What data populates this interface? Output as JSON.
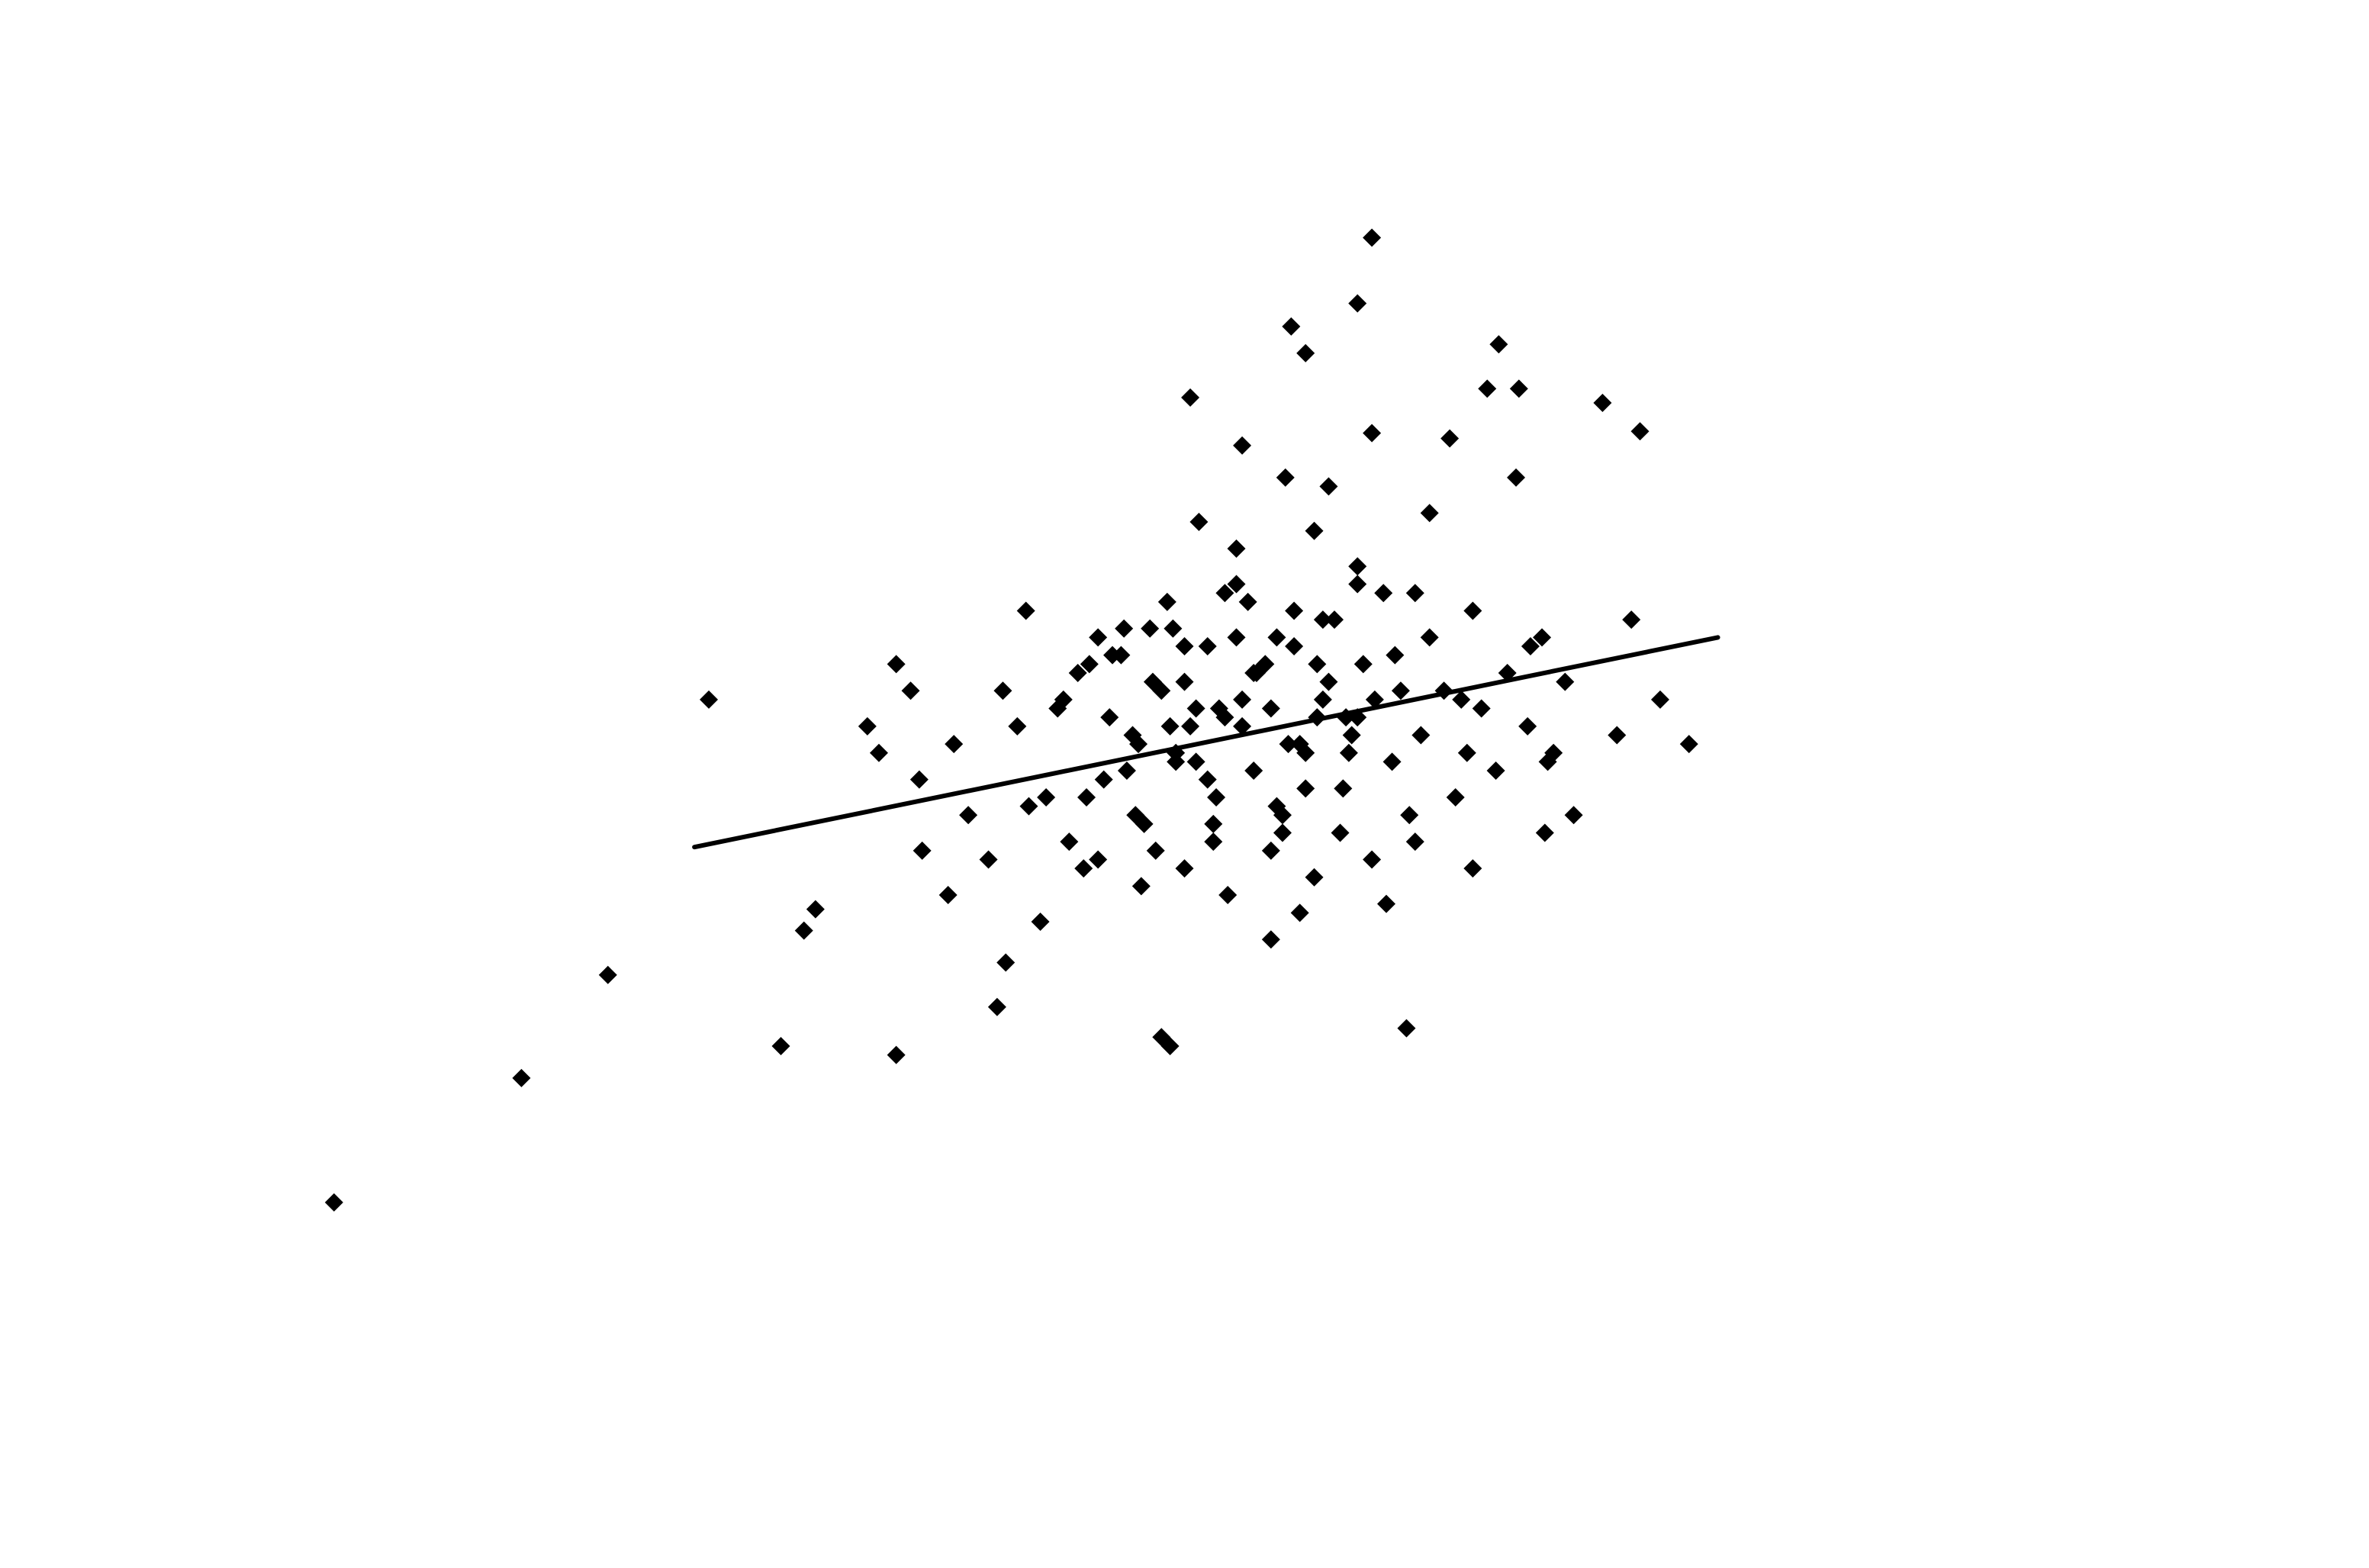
{
  "chart_data": {
    "type": "scatter",
    "title": "",
    "xlabel": "",
    "ylabel": "",
    "xlim": [
      -3.8,
      3.2
    ],
    "ylim": [
      -3.55,
      3.3
    ],
    "grid": false,
    "legend": "none",
    "marker": "diamond",
    "color": "#000000",
    "trendline": {
      "x": [
        -2.0,
        1.55
      ],
      "y": [
        -0.48,
        0.7
      ]
    },
    "points": {
      "x": [
        -3.25,
        -2.6,
        -1.7,
        -1.3,
        -1.58,
        -2.3,
        -1.95,
        -1.62,
        -1.21,
        -1.36,
        -0.92,
        -0.38,
        -0.95,
        -0.35,
        -1.3,
        0.35,
        0.3,
        0.47,
        0.66,
        0.75,
        -0.28,
        0.07,
        0.12,
        0.79,
        0.86,
        1.15,
        1.28,
        1.25,
        0.96,
        1.35,
        -0.1,
        0.2,
        0.05,
        0.35,
        0.62,
        0.85,
        0.15,
        -0.25,
        0.55,
        -0.12,
        -0.22,
        0.3,
        -0.16,
        -0.35,
        -0.6,
        -0.5,
        -0.78,
        -0.65,
        -1.05,
        -1.12,
        -0.98,
        -0.8,
        0.0,
        0.1,
        0.4,
        0.7,
        0.95,
        1.05,
        1.2,
        1.45,
        0.9,
        0.5,
        0.3,
        0.18,
        0.02,
        -0.08,
        -0.42,
        -0.55,
        -0.67,
        -0.74,
        -0.88,
        -0.93,
        -1.1,
        -1.22,
        -1.25,
        -1.4,
        -0.46,
        -0.3,
        -0.18,
        -0.02,
        0.16,
        0.27,
        0.36,
        0.43,
        0.52,
        0.6,
        0.68,
        0.73,
        0.82,
        0.89,
        0.94,
        1.02,
        0.12,
        -0.06,
        -0.19,
        -0.33,
        -0.47,
        -0.58,
        -0.7,
        -0.84,
        -0.4,
        -0.2,
        0.04,
        0.25,
        0.48,
        0.64,
        0.78,
        0.98,
        -0.63,
        -0.85,
        -0.51,
        -0.36,
        -0.12,
        0.08,
        0.22,
        0.39,
        0.55,
        0.7,
        -0.28,
        -0.1,
        0.1,
        0.3,
        0.45,
        -0.6,
        -0.45,
        -0.3,
        -0.15,
        0.0,
        0.15,
        0.35,
        0.5,
        -0.72,
        -0.56,
        -0.41,
        -0.26,
        -0.05,
        0.18,
        0.32,
        -0.48,
        -0.33,
        -0.1,
        0.06,
        0.26,
        0.42,
        -0.64,
        -0.22,
        0.02,
        0.2,
        -0.38,
        -0.16,
        0.12,
        0.28,
        -0.52,
        -0.3,
        -0.06,
        0.16,
        -0.44,
        -0.2,
        0.04,
        0.24,
        -0.34,
        -0.12,
        0.08,
        -0.26,
        0.0
      ],
      "y": [
        -2.48,
        -1.78,
        -1.6,
        -1.65,
        -0.83,
        -1.2,
        0.35,
        -0.95,
        -0.5,
        0.05,
        -1.13,
        -1.55,
        -1.38,
        -1.6,
        0.55,
        2.95,
        2.58,
        -1.5,
        0.35,
        2.1,
        2.05,
        2.45,
        2.3,
        2.35,
        2.1,
        2.02,
        1.86,
        0.8,
        0.0,
        0.35,
        1.78,
        1.55,
        1.6,
        1.85,
        1.82,
        1.6,
        1.3,
        1.35,
        1.4,
        1.2,
        0.65,
        1.1,
        0.95,
        0.2,
        0.7,
        -0.05,
        -0.2,
        -0.6,
        -0.3,
        -0.75,
        -0.55,
        -0.9,
        -1.0,
        -0.85,
        -0.8,
        -0.6,
        -0.4,
        -0.3,
        0.15,
        0.1,
        0.65,
        0.95,
        1.0,
        0.8,
        0.7,
        0.9,
        0.75,
        0.6,
        0.5,
        0.3,
        0.2,
        0.4,
        0.1,
        -0.1,
        0.4,
        0.2,
        0.1,
        0.45,
        0.3,
        0.55,
        0.25,
        0.05,
        0.35,
        0.6,
        0.15,
        0.4,
        0.05,
        0.3,
        0.5,
        0.2,
        0.7,
        0.45,
        -0.15,
        -0.05,
        -0.2,
        0.0,
        -0.3,
        -0.1,
        -0.45,
        -0.25,
        -0.5,
        -0.35,
        -0.4,
        -0.15,
        -0.3,
        -0.2,
        -0.05,
        0.05,
        0.55,
        0.85,
        0.75,
        0.9,
        1.0,
        0.65,
        0.8,
        0.95,
        0.7,
        0.85,
        0.2,
        0.35,
        0.1,
        0.25,
        0.4,
        -0.55,
        -0.7,
        -0.6,
        -0.75,
        -0.5,
        -0.65,
        -0.55,
        -0.45,
        0.35,
        0.25,
        0.45,
        0.3,
        0.5,
        0.35,
        0.55,
        0.15,
        0.05,
        0.2,
        0.1,
        0.25,
        0.0,
        -0.2,
        -0.1,
        -0.25,
        0.45,
        0.4,
        0.25,
        0.05,
        0.15,
        0.6,
        0.65,
        0.5,
        0.55,
        -0.35,
        -0.45,
        -0.3,
        -0.4,
        0.75,
        0.7,
        0.85,
        0.0,
        0.3
      ]
    }
  }
}
